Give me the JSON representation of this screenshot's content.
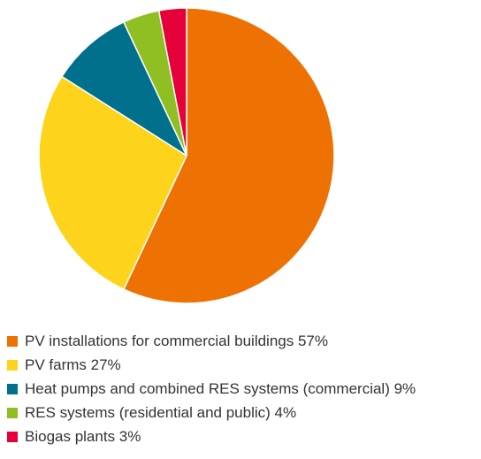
{
  "chart_data": {
    "type": "pie",
    "slices": [
      {
        "label": "PV installations for commercial buildings 57%",
        "value": 57,
        "color": "#EE7203"
      },
      {
        "label": "PV farms 27%",
        "value": 27,
        "color": "#FDD41B"
      },
      {
        "label": "Heat pumps and combined RES systems (commercial) 9%",
        "value": 9,
        "color": "#00708D"
      },
      {
        "label": "RES systems (residential and public) 4%",
        "value": 4,
        "color": "#8FBF22"
      },
      {
        "label": "Biogas plants 3%",
        "value": 3,
        "color": "#E5003A"
      }
    ],
    "legend_position": "bottom-left",
    "start_angle": "12 o'clock",
    "direction": "clockwise"
  }
}
